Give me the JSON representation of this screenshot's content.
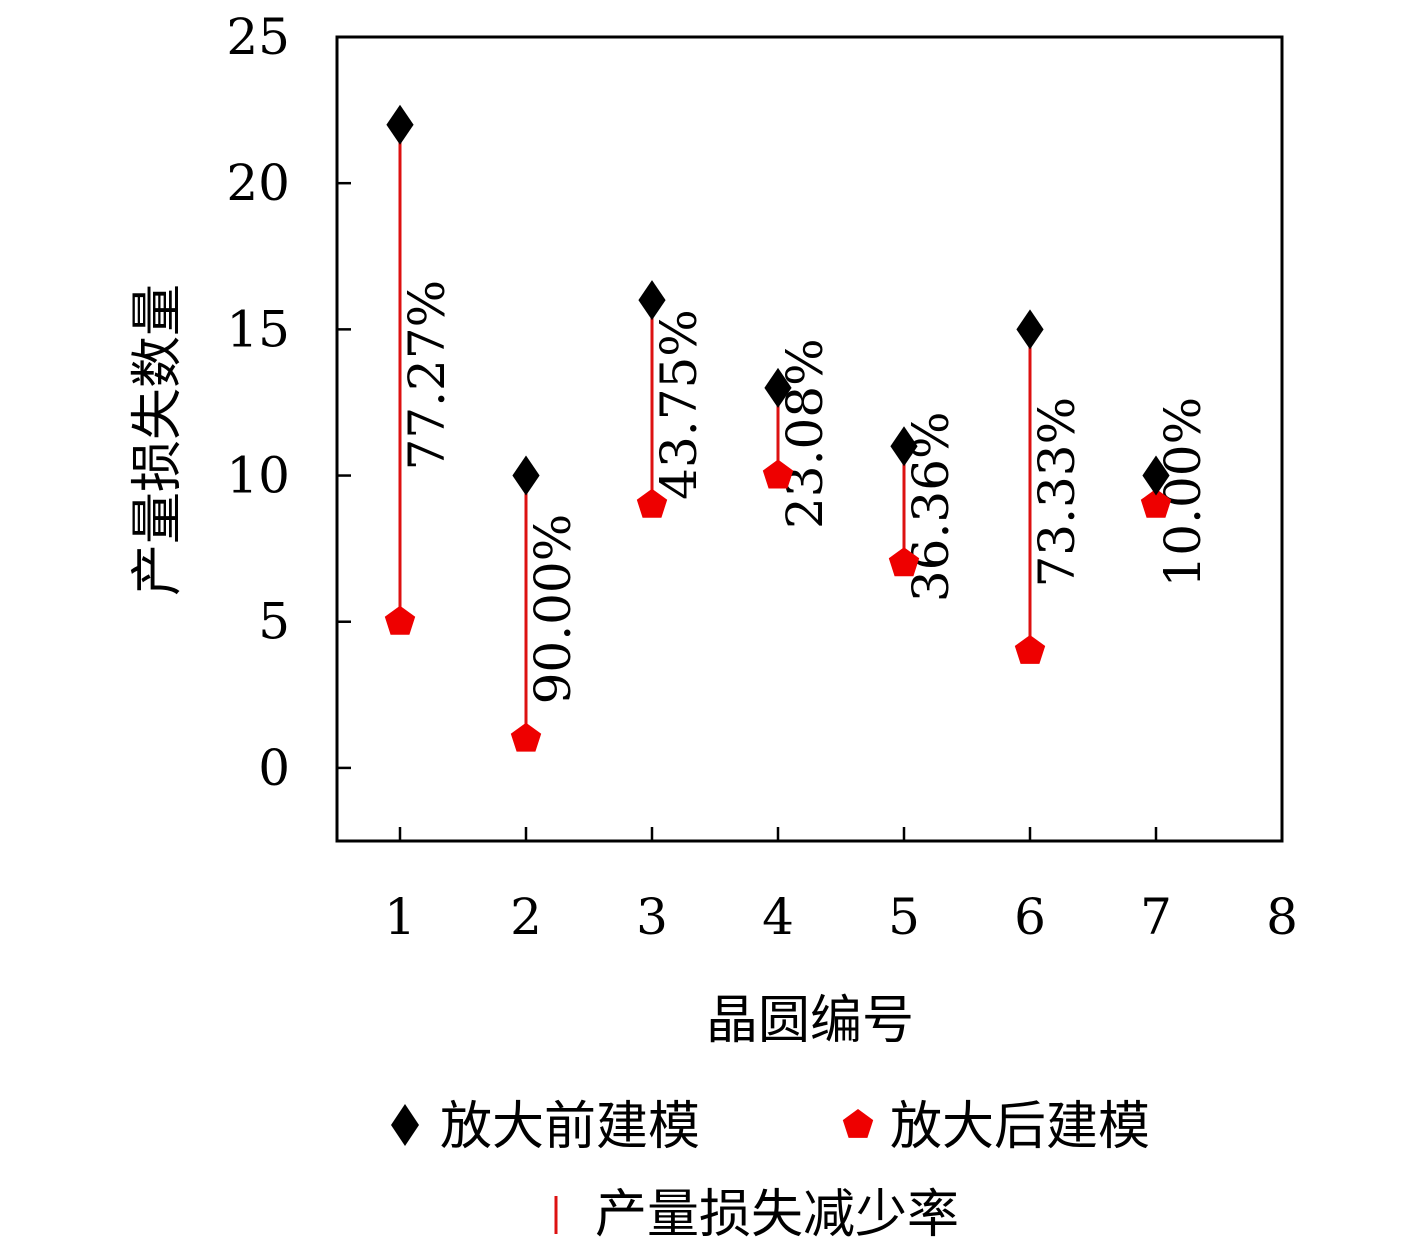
{
  "chart_data": {
    "type": "scatter",
    "xlabel": "晶圆编号",
    "ylabel": "产量损失数量",
    "xlim": [
      0.5,
      8
    ],
    "ylim": [
      -2.5,
      25
    ],
    "x_ticks": [
      "1",
      "2",
      "3",
      "4",
      "5",
      "6",
      "7",
      "8"
    ],
    "y_ticks": [
      "0",
      "5",
      "10",
      "15",
      "20",
      "25"
    ],
    "grid": false,
    "legend_position": "bottom",
    "categories": [
      1,
      2,
      3,
      4,
      5,
      6,
      7
    ],
    "series": [
      {
        "name": "放大前建模",
        "marker": "diamond",
        "color": "#000000",
        "values": [
          22,
          10,
          16,
          13,
          11,
          15,
          10
        ]
      },
      {
        "name": "放大后建模",
        "marker": "pentagon",
        "color": "#ee0000",
        "values": [
          5,
          1,
          9,
          10,
          7,
          4,
          9
        ]
      }
    ],
    "reduction": {
      "name": "产量损失减少率",
      "color": "#dd1111",
      "labels": [
        "77.27%",
        "90.00%",
        "43.75%",
        "23.08%",
        "36.36%",
        "73.33%",
        "10.00%"
      ]
    }
  }
}
